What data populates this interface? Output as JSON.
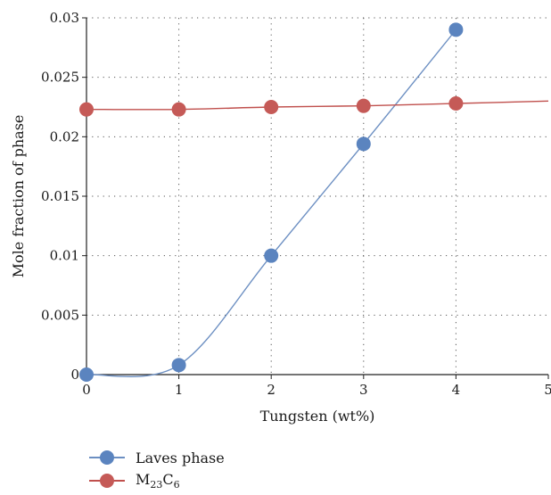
{
  "chart_data": {
    "type": "line",
    "xlabel": "Tungsten (wt%)",
    "ylabel": "Mole fraction of phase",
    "xlim": [
      0,
      5
    ],
    "ylim": [
      0,
      0.03
    ],
    "x_ticks": [
      "0",
      "1",
      "2",
      "3",
      "4",
      "5"
    ],
    "y_ticks": [
      "0",
      "0.005",
      "0.01",
      "0.015",
      "0.02",
      "0.025",
      "0.03"
    ],
    "grid": "dotted",
    "legend_position": "bottom-left",
    "series": [
      {
        "name": "Laves phase",
        "color": "#5b84bf",
        "line_color": "#6c8fc2",
        "x": [
          0,
          1,
          2,
          3,
          4
        ],
        "y": [
          0,
          0.0008,
          0.01,
          0.0194,
          0.029
        ]
      },
      {
        "name": "M23C6",
        "color": "#c55a57",
        "line_color": "#c0504d",
        "x": [
          0,
          1,
          2,
          3,
          4
        ],
        "y": [
          0.0223,
          0.0223,
          0.0225,
          0.0226,
          0.0228
        ],
        "line_extends_to": [
          5,
          0.023
        ]
      }
    ]
  },
  "legend": {
    "items": [
      {
        "label": "Laves phase"
      },
      {
        "label_main": "M",
        "label_sub1": "23",
        "label_mid": "C",
        "label_sub2": "6"
      }
    ]
  }
}
